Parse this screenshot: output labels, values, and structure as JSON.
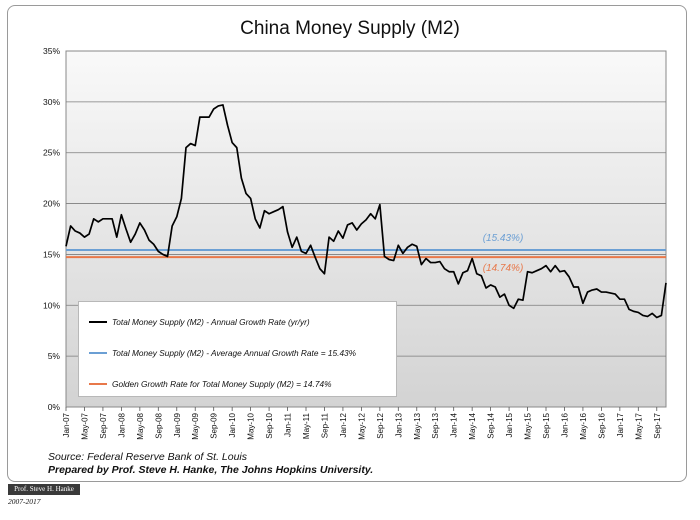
{
  "chart_data": {
    "type": "line",
    "title": "China Money Supply (M2)",
    "ylim": [
      0,
      35
    ],
    "ytick_labels": [
      "0%",
      "5%",
      "10%",
      "15%",
      "20%",
      "25%",
      "30%",
      "35%"
    ],
    "x_tick_labels": [
      "Jan-07",
      "May-07",
      "Sep-07",
      "Jan-08",
      "May-08",
      "Sep-08",
      "Jan-09",
      "May-09",
      "Sep-09",
      "Jan-10",
      "May-10",
      "Sep-10",
      "Jan-11",
      "May-11",
      "Sep-11",
      "Jan-12",
      "May-12",
      "Sep-12",
      "Jan-13",
      "May-13",
      "Sep-13",
      "Jan-14",
      "May-14",
      "Sep-14",
      "Jan-15",
      "May-15",
      "Sep-15",
      "Jan-16",
      "May-16",
      "Sep-16",
      "Jan-17",
      "May-17",
      "Sep-17"
    ],
    "x_start": "Jan-07",
    "series": [
      {
        "name": "Total Money Supply (M2) - Annual Growth Rate (yr/yr)",
        "color": "#000000",
        "values": [
          15.8,
          17.8,
          17.3,
          17.1,
          16.7,
          17.0,
          18.5,
          18.2,
          18.5,
          18.5,
          18.5,
          16.7,
          18.9,
          17.5,
          16.2,
          17.0,
          18.1,
          17.4,
          16.4,
          16.0,
          15.3,
          15.0,
          14.8,
          17.8,
          18.7,
          20.5,
          25.5,
          25.9,
          25.7,
          28.5,
          28.5,
          28.5,
          29.3,
          29.6,
          29.7,
          27.7,
          26.0,
          25.5,
          22.5,
          21.0,
          20.5,
          18.5,
          17.6,
          19.3,
          19.0,
          19.2,
          19.4,
          19.7,
          17.2,
          15.7,
          16.7,
          15.3,
          15.1,
          15.9,
          14.7,
          13.6,
          13.1,
          16.7,
          16.3,
          17.3,
          16.6,
          17.9,
          18.1,
          17.4,
          18.0,
          18.4,
          19.0,
          18.5,
          19.9,
          14.8,
          14.5,
          14.4,
          15.9,
          15.1,
          15.7,
          16.0,
          15.8,
          14.0,
          14.6,
          14.2,
          14.2,
          14.3,
          13.6,
          13.3,
          13.3,
          12.1,
          13.2,
          13.4,
          14.6,
          13.1,
          12.9,
          11.7,
          12.0,
          11.8,
          10.8,
          11.1,
          10.0,
          9.7,
          10.6,
          10.5,
          13.3,
          13.2,
          13.4,
          13.6,
          13.9,
          13.3,
          13.9,
          13.3,
          13.4,
          12.8,
          11.8,
          11.8,
          10.2,
          11.3,
          11.5,
          11.6,
          11.3,
          11.3,
          11.2,
          11.1,
          10.6,
          10.6,
          9.6,
          9.4,
          9.3,
          9.0,
          8.9,
          9.2,
          8.8,
          9.0,
          12.2
        ]
      },
      {
        "name": "Total Money Supply (M2) - Average Annual Growth Rate = 15.43%",
        "color": "#6b9fd4",
        "value": 15.43,
        "label": "(15.43%)"
      },
      {
        "name": "Golden Growth Rate for Total Money Supply (M2) = 14.74%",
        "color": "#e8784a",
        "value": 14.74,
        "label": "(14.74%)"
      }
    ],
    "legend": [
      "Total Money Supply (M2) - Annual Growth Rate (yr/yr)",
      "Total Money Supply (M2) - Average Annual Growth Rate = 15.43%",
      "Golden Growth Rate for Total Money Supply (M2) = 14.74%"
    ],
    "source": "Source: Federal Reserve Bank of St. Louis",
    "prepared_by": "Prepared by Prof. Steve H. Hanke, The Johns Hopkins University."
  },
  "footer": {
    "badge": "Prof. Steve H. Hanke",
    "years": "2007-2017"
  }
}
